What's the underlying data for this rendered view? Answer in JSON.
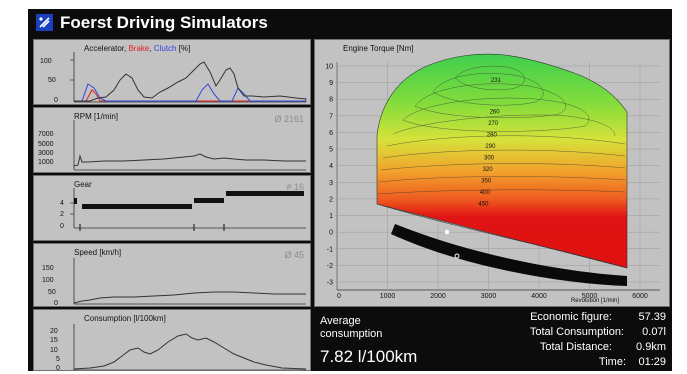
{
  "app": {
    "title": "Foerst Driving Simulators",
    "icon": "simulator-logo-icon"
  },
  "panels": {
    "accelerator": {
      "title_prefix": "Accelerator, ",
      "brake_word": "Brake",
      "comma": ", ",
      "clutch_word": "Clutch",
      "unit": " [%]",
      "yticks": [
        "100",
        "50",
        "0"
      ]
    },
    "rpm": {
      "title": "RPM [1/min]",
      "average": "Ø 2161",
      "yticks": [
        "7000",
        "5000",
        "3000",
        "1000"
      ]
    },
    "gear": {
      "title": "Gear",
      "average": "# 16",
      "yticks": [
        "4",
        "2",
        "0"
      ]
    },
    "speed": {
      "title": "Speed [km/h]",
      "average": "Ø 45",
      "yticks": [
        "150",
        "100",
        "50",
        "0"
      ]
    },
    "consumption": {
      "title": "Consumption [l/100km]",
      "yticks": [
        "20",
        "15",
        "10",
        "5",
        "0"
      ]
    }
  },
  "torque_map": {
    "title": "Engine Torque [Nm]",
    "xlabel": "Revolution [1/min]",
    "yticks": [
      "10",
      "9",
      "8",
      "7",
      "6",
      "5",
      "4",
      "3",
      "2",
      "1",
      "0",
      "-1",
      "-2",
      "-3"
    ],
    "xticks": [
      "0",
      "1000",
      "2000",
      "3000",
      "4000",
      "5000",
      "6000"
    ],
    "contour_labels": [
      "231",
      "260",
      "270",
      "280",
      "290",
      "300",
      "320",
      "350",
      "400",
      "450"
    ]
  },
  "stats": {
    "avg_label_1": "Average",
    "avg_label_2": "consumption",
    "avg_value": "7.82 l/100km",
    "economic_label": "Economic figure:",
    "economic_value": "57.39",
    "total_consumption_label": "Total Consumption:",
    "total_consumption_value": "0.07l",
    "total_distance_label": "Total Distance:",
    "total_distance_value": "0.9km",
    "time_label": "Time:",
    "time_value": "01:29"
  },
  "colors": {
    "accelerator": "#333333",
    "brake": "#e02020",
    "clutch": "#3344dd",
    "panel_bg": "#c2c2c2",
    "window_bg": "#0c0c0c"
  }
}
